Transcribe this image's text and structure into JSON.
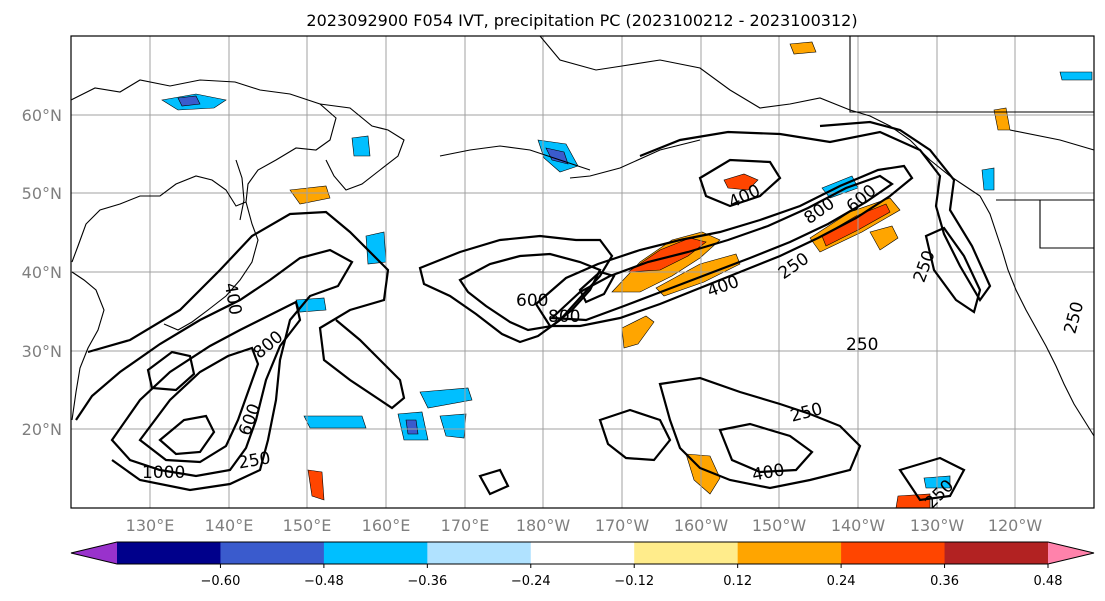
{
  "title": "2023092900 F054 IVT, precipitation PC (2023100212 - 2023100312)",
  "map": {
    "projection": "PlateCarree",
    "lon_range": [
      120,
      250
    ],
    "lat_range": [
      10,
      70
    ],
    "gridlines": true,
    "lat_labels": [
      "20°N",
      "30°N",
      "40°N",
      "50°N",
      "60°N"
    ],
    "lon_labels": [
      "130°E",
      "140°E",
      "150°E",
      "160°E",
      "170°E",
      "180°W",
      "170°W",
      "160°W",
      "150°W",
      "140°W",
      "130°W",
      "120°W"
    ],
    "ivt_contour_levels": [
      250,
      400,
      600,
      800,
      1000
    ],
    "contour_labels": [
      {
        "text": "1000",
        "id": "c1000-w"
      },
      {
        "text": "800",
        "id": "c800-w"
      },
      {
        "text": "600",
        "id": "c600-w"
      },
      {
        "text": "250",
        "id": "c250-w"
      },
      {
        "text": "400",
        "id": "c400-w"
      },
      {
        "text": "600",
        "id": "c600-c"
      },
      {
        "text": "800",
        "id": "c800-c"
      },
      {
        "text": "400",
        "id": "c400-c"
      },
      {
        "text": "400",
        "id": "c400-ne"
      },
      {
        "text": "800",
        "id": "c800-ne"
      },
      {
        "text": "600",
        "id": "c600-ne"
      },
      {
        "text": "250",
        "id": "c250-ne"
      },
      {
        "text": "250",
        "id": "c250-e"
      },
      {
        "text": "250",
        "id": "c250-se"
      },
      {
        "text": "400",
        "id": "c400-s"
      },
      {
        "text": "250",
        "id": "c250-s"
      },
      {
        "text": "250",
        "id": "c250-se2"
      },
      {
        "text": "250",
        "id": "c250-ce"
      }
    ]
  },
  "colorbar": {
    "ticks": [
      "−0.60",
      "−0.48",
      "−0.36",
      "−0.24",
      "−0.12",
      "0.12",
      "0.24",
      "0.36",
      "0.48",
      "0.60"
    ],
    "colors": [
      "#9932cc",
      "#00008b",
      "#3a5bcd",
      "#00bfff",
      "#b0e2ff",
      "#ffffff",
      "#ffec8b",
      "#ffa500",
      "#ff4500",
      "#b22222",
      "#ff82ab"
    ],
    "extend": "both"
  }
}
